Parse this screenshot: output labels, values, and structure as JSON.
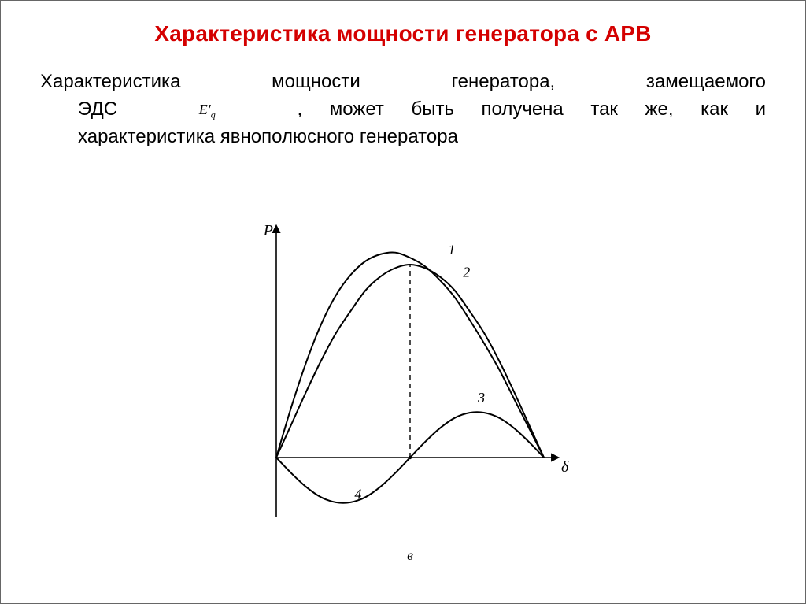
{
  "title": "Характеристика мощности генератора с АРВ",
  "body": {
    "line1": "Характеристика мощности генератора, замещаемого",
    "line2_a": "ЭДС",
    "line2_b": ", может быть получена так же, как и",
    "line3": "характеристика явнополюсного генератора",
    "emf_symbol": "E′",
    "emf_subscript": "q"
  },
  "chart": {
    "type": "line",
    "y_axis_label": "P",
    "x_axis_label": "δ",
    "sub_label": "в",
    "colors": {
      "axis": "#000000",
      "curve": "#000000",
      "dashed": "#000000",
      "text": "#000000",
      "background": "#ffffff"
    },
    "stroke_width": 2.0,
    "dashed_stroke_width": 1.4,
    "axis_stroke_width": 1.6,
    "font_size_axis": 20,
    "font_size_labels": 18,
    "font_family": "Times New Roman, serif",
    "x_range": [
      0,
      180
    ],
    "y_range": [
      -32,
      128
    ],
    "curve_labels": {
      "1": {
        "x": 118,
        "y": 118
      },
      "2": {
        "x": 128,
        "y": 105
      },
      "3": {
        "x": 138,
        "y": 32
      },
      "4": {
        "x": 55,
        "y": -24
      }
    },
    "dashed_line_x": 90,
    "dashed_line_y_top": 112,
    "curves": {
      "curve1_salient": {
        "description": "salient-pole resultant (skewed arch peaking left of 90)",
        "points": [
          [
            0,
            0
          ],
          [
            10,
            29
          ],
          [
            20,
            55
          ],
          [
            30,
            77
          ],
          [
            40,
            94
          ],
          [
            50,
            106
          ],
          [
            60,
            114
          ],
          [
            70,
            118
          ],
          [
            80,
            119
          ],
          [
            90,
            116
          ],
          [
            100,
            111
          ],
          [
            110,
            103
          ],
          [
            120,
            93
          ],
          [
            130,
            80
          ],
          [
            140,
            66
          ],
          [
            150,
            51
          ],
          [
            160,
            34
          ],
          [
            170,
            17
          ],
          [
            180,
            0
          ]
        ]
      },
      "curve2_sine": {
        "description": "fundamental sine component",
        "points": [
          [
            0,
            0
          ],
          [
            10,
            19
          ],
          [
            20,
            38
          ],
          [
            30,
            56
          ],
          [
            40,
            72
          ],
          [
            50,
            85
          ],
          [
            60,
            97
          ],
          [
            70,
            105
          ],
          [
            80,
            110
          ],
          [
            90,
            112
          ],
          [
            100,
            110
          ],
          [
            110,
            105
          ],
          [
            120,
            97
          ],
          [
            130,
            85
          ],
          [
            140,
            72
          ],
          [
            150,
            56
          ],
          [
            160,
            38
          ],
          [
            170,
            19
          ],
          [
            180,
            0
          ]
        ]
      },
      "curve3_reluctance": {
        "description": "second-harmonic reluctance component sin(2δ)",
        "points": [
          [
            0,
            0
          ],
          [
            10,
            -9
          ],
          [
            20,
            -17
          ],
          [
            30,
            -23
          ],
          [
            40,
            -26
          ],
          [
            50,
            -26
          ],
          [
            60,
            -23
          ],
          [
            70,
            -17
          ],
          [
            80,
            -9
          ],
          [
            90,
            0
          ],
          [
            100,
            9
          ],
          [
            110,
            17
          ],
          [
            120,
            23
          ],
          [
            130,
            26
          ],
          [
            140,
            26
          ],
          [
            150,
            23
          ],
          [
            160,
            17
          ],
          [
            170,
            9
          ],
          [
            180,
            0
          ]
        ]
      }
    }
  }
}
